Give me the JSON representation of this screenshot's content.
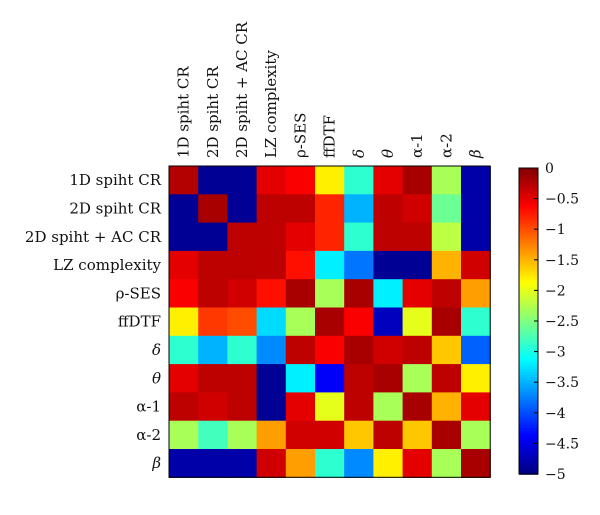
{
  "chart_data": {
    "type": "heatmap",
    "title": "",
    "xlabel": "",
    "ylabel": "",
    "rows": [
      "1D spiht CR",
      "2D spiht CR",
      "2D spiht + AC CR",
      "LZ complexity",
      "ρ-SES",
      "ffDTF",
      "δ",
      "θ",
      "α-1",
      "α-2",
      "β"
    ],
    "columns": [
      "1D spiht CR",
      "2D spiht CR",
      "2D spiht + AC CR",
      "LZ complexity",
      "ρ-SES",
      "ffDTF",
      "δ",
      "θ",
      "α-1",
      "α-2",
      "β"
    ],
    "values": [
      [
        -0.25,
        -4.9,
        -4.9,
        -0.5,
        -0.6,
        -1.8,
        -2.9,
        -0.5,
        -0.2,
        -2.3,
        -4.8
      ],
      [
        -4.9,
        -0.2,
        -4.9,
        -0.3,
        -0.3,
        -0.8,
        -3.5,
        -0.3,
        -0.4,
        -2.6,
        -4.8
      ],
      [
        -4.9,
        -4.9,
        -0.3,
        -0.3,
        -0.5,
        -0.8,
        -2.9,
        -0.3,
        -0.3,
        -2.2,
        -4.8
      ],
      [
        -0.5,
        -0.3,
        -0.3,
        -0.3,
        -0.7,
        -3.2,
        -3.8,
        -4.9,
        -4.9,
        -1.5,
        -0.4
      ],
      [
        -0.6,
        -0.3,
        -0.4,
        -0.7,
        -0.2,
        -2.3,
        -0.2,
        -3.2,
        -0.5,
        -0.3,
        -1.4
      ],
      [
        -1.8,
        -0.9,
        -1.0,
        -3.3,
        -2.3,
        -0.2,
        -0.6,
        -4.7,
        -2.0,
        -0.2,
        -2.9
      ],
      [
        -2.9,
        -3.5,
        -2.9,
        -3.7,
        -0.3,
        -0.6,
        -0.2,
        -0.4,
        -0.3,
        -1.6,
        -3.9
      ],
      [
        -0.5,
        -0.3,
        -0.3,
        -4.9,
        -3.2,
        -4.4,
        -0.3,
        -0.2,
        -2.3,
        -0.3,
        -1.8
      ],
      [
        -0.3,
        -0.4,
        -0.3,
        -4.9,
        -0.5,
        -2.0,
        -0.3,
        -2.3,
        -0.2,
        -1.5,
        -0.5
      ],
      [
        -2.3,
        -2.8,
        -2.3,
        -1.4,
        -0.4,
        -0.4,
        -1.6,
        -0.3,
        -1.6,
        -0.2,
        -2.3
      ],
      [
        -4.8,
        -4.8,
        -4.8,
        -0.4,
        -1.4,
        -2.9,
        -3.7,
        -1.8,
        -0.5,
        -2.3,
        -0.2
      ]
    ],
    "colorbar": {
      "min": -5,
      "max": 0,
      "colormap": "jet",
      "ticks": [
        "0",
        "-0.5",
        "-1",
        "-1.5",
        "-2",
        "-2.5",
        "-3",
        "-3.5",
        "-4",
        "-4.5",
        "-5"
      ]
    },
    "grid": false
  }
}
